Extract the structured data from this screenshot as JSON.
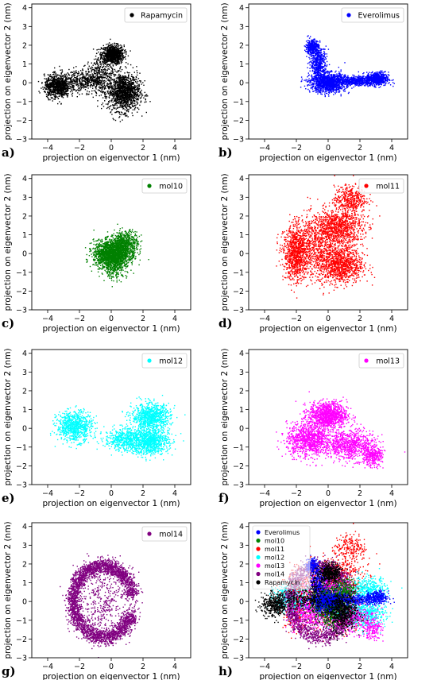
{
  "chart_data": [
    {
      "panel_label": "a)",
      "type": "scatter",
      "xlabel": "projection on eigenvector 1 (nm)",
      "ylabel": "projection on eigenvector 2 (nm)",
      "xlim": [
        -5,
        5
      ],
      "ylim": [
        -3,
        4.2
      ],
      "xticks": [
        "−4",
        "−2",
        "0",
        "2",
        "4"
      ],
      "yticks": [
        "−3",
        "−2",
        "−1",
        "0",
        "1",
        "2",
        "3",
        "4"
      ],
      "grid": false,
      "legend_position": "top-right",
      "series": [
        {
          "name": "Rapamycin",
          "color": "#000000",
          "clusters": [
            {
              "x": 0.1,
              "y": 1.5,
              "sx": 0.35,
              "sy": 0.25,
              "n": 900
            },
            {
              "x": 0.8,
              "y": -0.5,
              "sx": 0.5,
              "sy": 0.5,
              "n": 1300
            },
            {
              "x": -3.4,
              "y": -0.2,
              "sx": 0.4,
              "sy": 0.3,
              "n": 800
            },
            {
              "x": -1.8,
              "y": 0.1,
              "sx": 0.8,
              "sy": 0.3,
              "n": 500
            },
            {
              "x": -0.6,
              "y": 0.4,
              "sx": 0.4,
              "sy": 0.5,
              "n": 300
            }
          ]
        }
      ]
    },
    {
      "panel_label": "b)",
      "type": "scatter",
      "xlabel": "projection on eigenvector 1 (nm)",
      "ylabel": "projection on eigenvector 2 (nm)",
      "xlim": [
        -5,
        5
      ],
      "ylim": [
        -3,
        4.2
      ],
      "xticks": [
        "−4",
        "−2",
        "0",
        "2",
        "4"
      ],
      "yticks": [
        "−3",
        "−2",
        "−1",
        "0",
        "1",
        "2",
        "3",
        "4"
      ],
      "grid": false,
      "legend_position": "top-right",
      "series": [
        {
          "name": "Everolimus",
          "color": "#0000ff",
          "clusters": [
            {
              "x": -1.0,
              "y": 1.9,
              "sx": 0.2,
              "sy": 0.2,
              "n": 350
            },
            {
              "x": -0.6,
              "y": 1.0,
              "sx": 0.25,
              "sy": 0.45,
              "n": 500
            },
            {
              "x": 0.0,
              "y": 0.0,
              "sx": 0.55,
              "sy": 0.25,
              "n": 1300
            },
            {
              "x": 1.7,
              "y": 0.1,
              "sx": 0.6,
              "sy": 0.12,
              "n": 500
            },
            {
              "x": 3.1,
              "y": 0.2,
              "sx": 0.35,
              "sy": 0.18,
              "n": 600
            }
          ]
        }
      ]
    },
    {
      "panel_label": "c)",
      "type": "scatter",
      "xlabel": "projection on eigenvector 1 (nm)",
      "ylabel": "projection on eigenvector 2 (nm)",
      "xlim": [
        -5,
        5
      ],
      "ylim": [
        -3,
        4.2
      ],
      "xticks": [
        "−4",
        "−2",
        "0",
        "2",
        "4"
      ],
      "yticks": [
        "−3",
        "−2",
        "−1",
        "0",
        "1",
        "2",
        "3",
        "4"
      ],
      "grid": false,
      "legend_position": "top-right",
      "series": [
        {
          "name": "mol10",
          "color": "#008000",
          "clusters": [
            {
              "x": 0.0,
              "y": 0.0,
              "sx": 0.55,
              "sy": 0.35,
              "n": 1600
            },
            {
              "x": 0.9,
              "y": 0.5,
              "sx": 0.4,
              "sy": 0.35,
              "n": 600
            },
            {
              "x": 0.2,
              "y": -0.6,
              "sx": 0.4,
              "sy": 0.35,
              "n": 400
            }
          ]
        }
      ]
    },
    {
      "panel_label": "d)",
      "type": "scatter",
      "xlabel": "projection on eigenvector 1 (nm)",
      "ylabel": "projection on eigenvector 2 (nm)",
      "xlim": [
        -5,
        5
      ],
      "ylim": [
        -3,
        4.2
      ],
      "xticks": [
        "−4",
        "−2",
        "0",
        "2",
        "4"
      ],
      "yticks": [
        "−3",
        "−2",
        "−1",
        "0",
        "1",
        "2",
        "3",
        "4"
      ],
      "grid": false,
      "legend_position": "top-right",
      "series": [
        {
          "name": "mol11",
          "color": "#ff0000",
          "clusters": [
            {
              "x": -2.0,
              "y": 0.0,
              "sx": 0.4,
              "sy": 0.7,
              "n": 900
            },
            {
              "x": 0.6,
              "y": 1.4,
              "sx": 0.8,
              "sy": 0.5,
              "n": 1000
            },
            {
              "x": 0.8,
              "y": -0.6,
              "sx": 0.7,
              "sy": 0.5,
              "n": 1000
            },
            {
              "x": 1.4,
              "y": 2.9,
              "sx": 0.5,
              "sy": 0.35,
              "n": 400
            },
            {
              "x": -0.8,
              "y": 0.3,
              "sx": 0.8,
              "sy": 0.8,
              "n": 700
            }
          ]
        }
      ]
    },
    {
      "panel_label": "e)",
      "type": "scatter",
      "xlabel": "projection on eigenvector 1 (nm)",
      "ylabel": "projection on eigenvector 2 (nm)",
      "xlim": [
        -5,
        5
      ],
      "ylim": [
        -3,
        4.2
      ],
      "xticks": [
        "−4",
        "−2",
        "0",
        "2",
        "4"
      ],
      "yticks": [
        "−3",
        "−2",
        "−1",
        "0",
        "1",
        "2",
        "3",
        "4"
      ],
      "grid": false,
      "legend_position": "top-right",
      "series": [
        {
          "name": "mol12",
          "color": "#00ffff",
          "clusters": [
            {
              "x": -2.3,
              "y": 0.1,
              "sx": 0.55,
              "sy": 0.4,
              "n": 800
            },
            {
              "x": 2.5,
              "y": 0.6,
              "sx": 0.6,
              "sy": 0.35,
              "n": 900
            },
            {
              "x": 2.4,
              "y": -0.7,
              "sx": 0.6,
              "sy": 0.35,
              "n": 900
            },
            {
              "x": 0.8,
              "y": -0.6,
              "sx": 0.6,
              "sy": 0.3,
              "n": 500
            }
          ]
        }
      ]
    },
    {
      "panel_label": "f)",
      "type": "scatter",
      "xlabel": "projection on eigenvector 1 (nm)",
      "ylabel": "projection on eigenvector 2 (nm)",
      "xlim": [
        -5,
        5
      ],
      "ylim": [
        -3,
        4.2
      ],
      "xticks": [
        "−4",
        "−2",
        "0",
        "2",
        "4"
      ],
      "yticks": [
        "−3",
        "−2",
        "−1",
        "0",
        "1",
        "2",
        "3",
        "4"
      ],
      "grid": false,
      "legend_position": "top-right",
      "series": [
        {
          "name": "mol13",
          "color": "#ff00ff",
          "clusters": [
            {
              "x": 0.0,
              "y": 0.7,
              "sx": 0.6,
              "sy": 0.35,
              "n": 1100
            },
            {
              "x": -1.2,
              "y": -0.6,
              "sx": 0.7,
              "sy": 0.45,
              "n": 1000
            },
            {
              "x": 1.4,
              "y": -0.9,
              "sx": 0.8,
              "sy": 0.4,
              "n": 800
            },
            {
              "x": 2.8,
              "y": -1.5,
              "sx": 0.3,
              "sy": 0.25,
              "n": 300
            }
          ]
        }
      ]
    },
    {
      "panel_label": "g)",
      "type": "scatter",
      "xlabel": "projection on eigenvector 1 (nm)",
      "ylabel": "projection on eigenvector 2 (nm)",
      "xlim": [
        -5,
        5
      ],
      "ylim": [
        -3,
        4.2
      ],
      "xticks": [
        "−4",
        "−2",
        "0",
        "2",
        "4"
      ],
      "yticks": [
        "−3",
        "−2",
        "−1",
        "0",
        "1",
        "2",
        "3",
        "4"
      ],
      "grid": false,
      "legend_position": "top-right",
      "series": [
        {
          "name": "mol14",
          "color": "#800080",
          "ring": {
            "cx": -0.5,
            "cy": 0.0,
            "rx": 1.9,
            "ry": 1.9,
            "width": 0.35,
            "n": 3600,
            "gap_start_deg": -20,
            "gap_end_deg": 10
          },
          "clusters": [
            {
              "x": -0.5,
              "y": 0.0,
              "sx": 0.9,
              "sy": 0.9,
              "n": 400
            }
          ]
        }
      ]
    },
    {
      "panel_label": "h)",
      "type": "scatter",
      "xlabel": "projection on eigenvector 1 (nm)",
      "ylabel": "projection on eigenvector 2 (nm)",
      "xlim": [
        -5,
        5
      ],
      "ylim": [
        -3,
        4.2
      ],
      "xticks": [
        "−4",
        "−2",
        "0",
        "2",
        "4"
      ],
      "yticks": [
        "−3",
        "−2",
        "−1",
        "0",
        "1",
        "2",
        "3",
        "4"
      ],
      "grid": false,
      "legend_position": "top-left",
      "combined": true,
      "legend_entries": [
        {
          "name": "Everolimus",
          "color": "#0000ff"
        },
        {
          "name": "mol10",
          "color": "#008000"
        },
        {
          "name": "mol11",
          "color": "#ff0000"
        },
        {
          "name": "mol12",
          "color": "#00ffff"
        },
        {
          "name": "mol13",
          "color": "#ff00ff"
        },
        {
          "name": "mol14",
          "color": "#800080"
        },
        {
          "name": "Rapamycin",
          "color": "#000000"
        }
      ]
    }
  ]
}
